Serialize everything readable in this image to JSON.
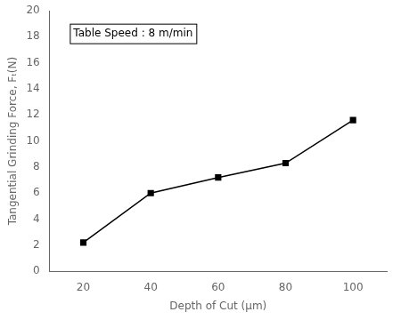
{
  "chart_data": {
    "type": "line",
    "x": [
      20,
      40,
      60,
      80,
      100
    ],
    "values": [
      2.2,
      6.0,
      7.2,
      8.3,
      11.6
    ],
    "xlabel": "Depth of Cut (μm)",
    "ylabel": "Tangential Grinding Force, Fₜ(N)",
    "annotation": "Table Speed : 8 m/min",
    "xlim": [
      10,
      110
    ],
    "ylim": [
      0,
      20
    ],
    "xticks": [
      20,
      40,
      60,
      80,
      100
    ],
    "yticks": [
      0,
      2,
      4,
      6,
      8,
      10,
      12,
      14,
      16,
      18,
      20
    ],
    "color": "#000000",
    "marker": "square",
    "line_style": "solid",
    "grid": false
  }
}
